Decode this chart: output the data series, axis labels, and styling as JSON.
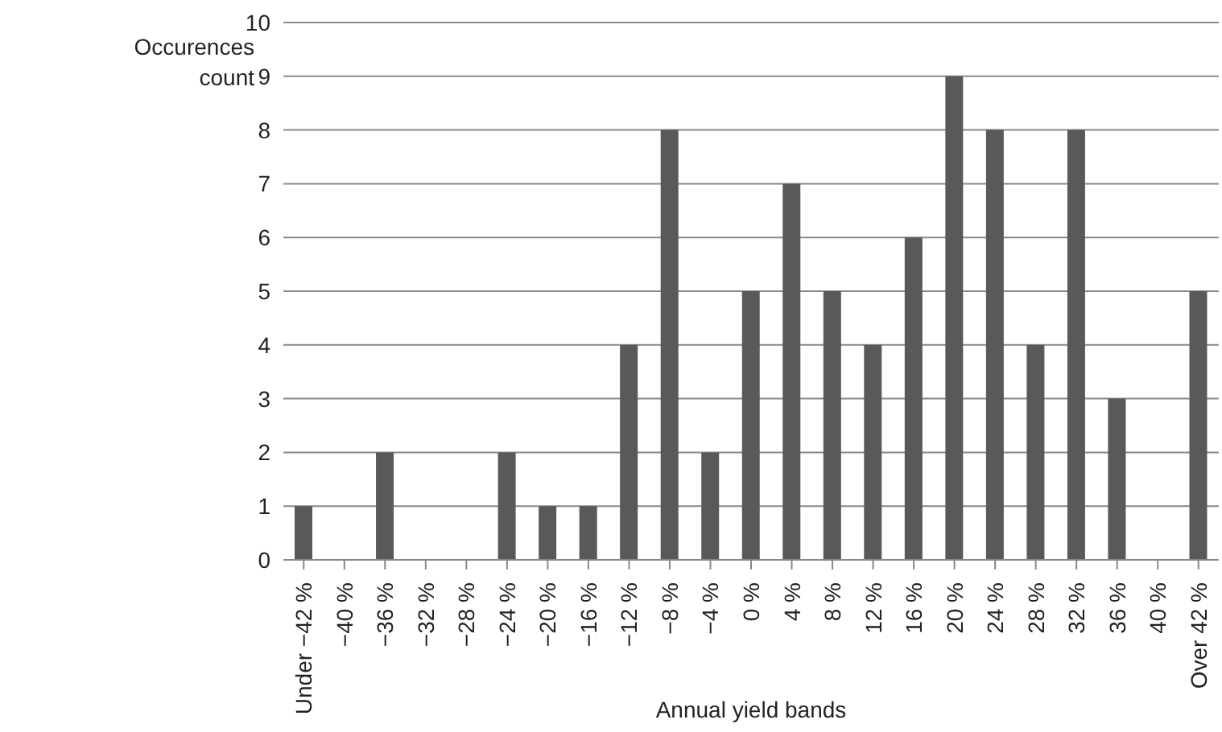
{
  "chart_data": {
    "type": "bar",
    "xlabel": "Annual yield bands",
    "ylabel": "Occurences count",
    "categories": [
      "Under −42 %",
      "−40 %",
      "−36 %",
      "−32 %",
      "−28 %",
      "−24 %",
      "−20 %",
      "−16 %",
      "−12 %",
      "−8 %",
      "−4 %",
      "0 %",
      "4 %",
      "8 %",
      "12 %",
      "16 %",
      "20 %",
      "24 %",
      "28 %",
      "32 %",
      "36 %",
      "40 %",
      "Over 42 %"
    ],
    "values": [
      1,
      0,
      2,
      0,
      0,
      2,
      1,
      1,
      4,
      8,
      2,
      5,
      7,
      5,
      4,
      6,
      9,
      8,
      4,
      8,
      3,
      0,
      5
    ],
    "color": "#595959",
    "ylim": [
      0,
      10
    ],
    "yticks": [
      0,
      1,
      2,
      3,
      4,
      5,
      6,
      7,
      8,
      9,
      10
    ],
    "grid": "y",
    "legend": false
  }
}
